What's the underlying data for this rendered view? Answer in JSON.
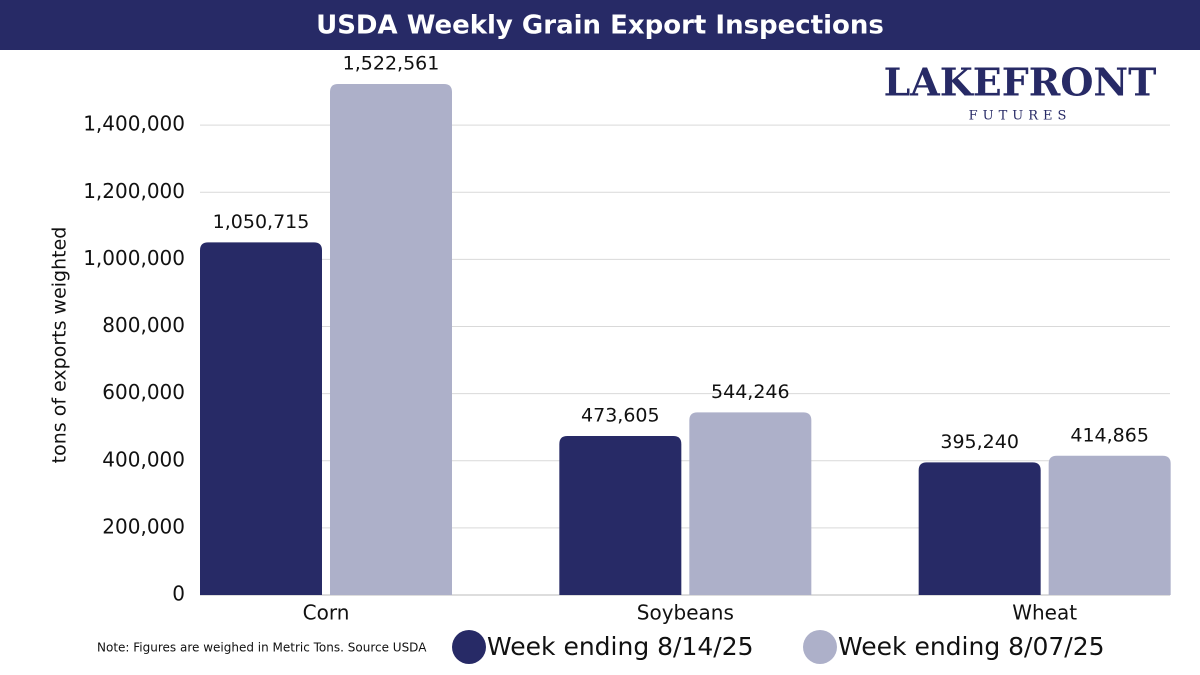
{
  "chart_data": {
    "type": "bar",
    "title": "USDA Weekly Grain Export Inspections",
    "logo": {
      "name": "LAKEFRONT",
      "subtitle": "FUTURES"
    },
    "y_label": "tons of exports weighted",
    "note": "Note: Figures are weighed in Metric Tons. Source USDA",
    "categories": [
      "Corn",
      "Soybeans",
      "Wheat"
    ],
    "series": [
      {
        "name": "Week ending 8/14/25",
        "color": "#272a66",
        "values": [
          1050715,
          473605,
          395240
        ],
        "value_labels": [
          "1,050,715",
          "473,605",
          "395,240"
        ]
      },
      {
        "name": "Week ending 8/07/25",
        "color": "#adb0c9",
        "values": [
          1522561,
          544246,
          414865
        ],
        "value_labels": [
          "1,522,561",
          "544,246",
          "414,865"
        ]
      }
    ],
    "ylim": [
      0,
      1600000
    ],
    "yticks": [
      0,
      {
        "value": 200000,
        "label": "200,000"
      },
      {
        "value": 400000,
        "label": "400,000"
      },
      {
        "value": 600000,
        "label": "600,000"
      },
      {
        "value": 800000,
        "label": "800,000"
      },
      {
        "value": 1000000,
        "label": "1,000,000"
      },
      {
        "value": 1200000,
        "label": "1,200,000"
      },
      {
        "value": 1400000,
        "label": "1,400,000"
      }
    ],
    "grid": true,
    "legend": "bottom"
  }
}
